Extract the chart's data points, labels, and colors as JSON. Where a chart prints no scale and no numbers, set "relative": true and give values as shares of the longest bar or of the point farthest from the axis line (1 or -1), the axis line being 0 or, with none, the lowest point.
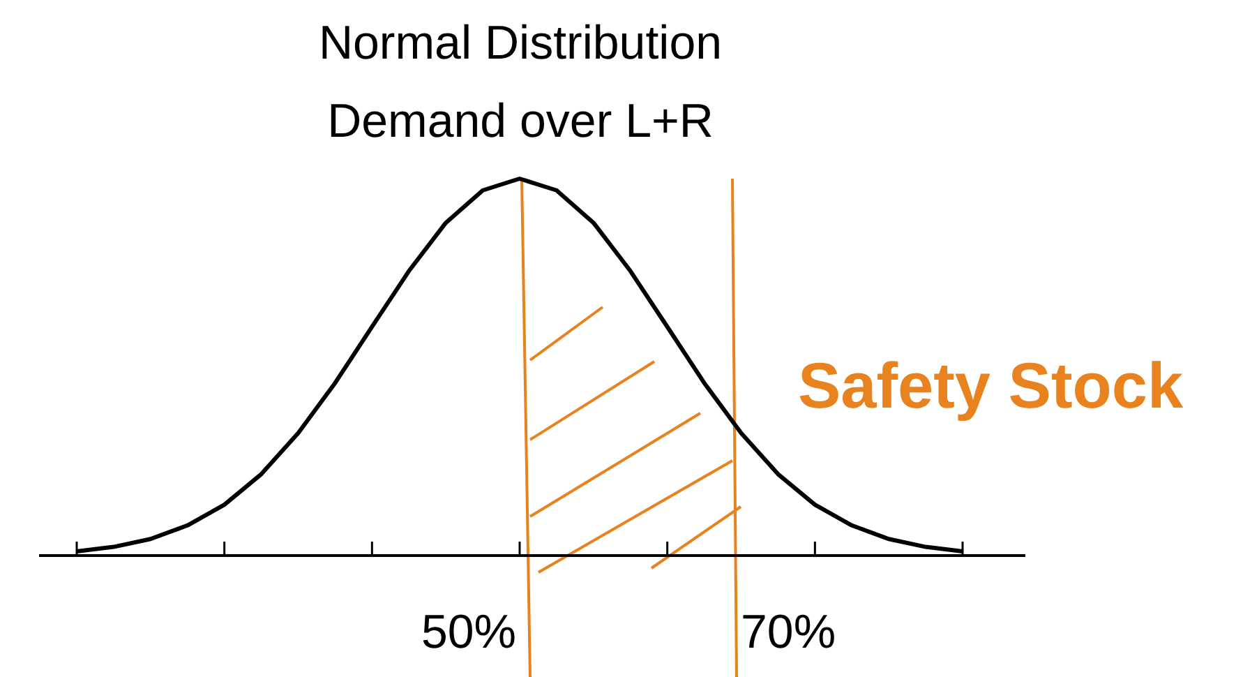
{
  "chart_data": {
    "type": "line",
    "title": "Normal Distribution",
    "subtitle": "Demand over L+R",
    "relative": true,
    "categories": [
      null,
      null,
      null,
      null,
      null,
      null,
      null,
      null,
      null,
      null,
      null,
      null,
      null,
      null,
      null,
      null,
      null,
      null,
      null,
      null,
      null,
      null,
      null,
      null,
      null
    ],
    "series": [
      {
        "color": "#000000",
        "values": [
          0.011,
          0.023,
          0.044,
          0.08,
          0.135,
          0.216,
          0.325,
          0.458,
          0.607,
          0.755,
          0.883,
          0.969,
          1,
          0.969,
          0.883,
          0.755,
          0.607,
          0.458,
          0.325,
          0.216,
          0.135,
          0.08,
          0.044,
          0.023,
          0.011
        ]
      }
    ],
    "annotations": [
      "50%",
      "70%",
      "Safety Stock"
    ]
  }
}
